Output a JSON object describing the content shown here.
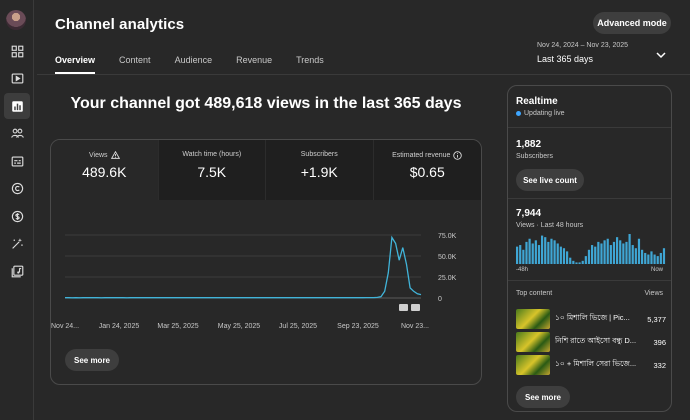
{
  "header": {
    "title": "Channel analytics",
    "advanced_label": "Advanced mode"
  },
  "tabs": [
    {
      "label": "Overview",
      "active": true
    },
    {
      "label": "Content"
    },
    {
      "label": "Audience"
    },
    {
      "label": "Revenue"
    },
    {
      "label": "Trends"
    }
  ],
  "date": {
    "range": "Nov 24, 2024 – Nov 23, 2025",
    "period": "Last 365 days"
  },
  "headline": "Your channel got 489,618 views in the last 365 days",
  "metrics": [
    {
      "label": "Views",
      "value": "489.6K",
      "icon": "warning-icon"
    },
    {
      "label": "Watch time (hours)",
      "value": "7.5K"
    },
    {
      "label": "Subscribers",
      "value": "+1.9K"
    },
    {
      "label": "Estimated revenue",
      "value": "$0.65",
      "icon": "info-icon"
    }
  ],
  "chart_data": {
    "type": "line",
    "series": [
      {
        "values": [
          300,
          320,
          280,
          310,
          290,
          330,
          300,
          310,
          320,
          300,
          290,
          310,
          300,
          320,
          330,
          310,
          300,
          290,
          310,
          320,
          300,
          310,
          320,
          330,
          310,
          300,
          320,
          340,
          330,
          320,
          310,
          300,
          320,
          330,
          340,
          330,
          320,
          310,
          300,
          320,
          350,
          340,
          330,
          320,
          310,
          330,
          340,
          350,
          330,
          320,
          340,
          360,
          350,
          340,
          330,
          350,
          360,
          340,
          330,
          350,
          370,
          360,
          350,
          340,
          360,
          380,
          370,
          360,
          350,
          370,
          390,
          380,
          370,
          360,
          380,
          400,
          390,
          380,
          370,
          400,
          420,
          410,
          400,
          420,
          450,
          500,
          700,
          1500,
          8000,
          30000,
          72000,
          65000,
          45000,
          60000,
          40000,
          12000,
          8000,
          5000,
          4000
        ]
      }
    ],
    "x_tick_labels": [
      "Nov 24...",
      "Jan 24, 2025",
      "Mar 25, 2025",
      "May 25, 2025",
      "Jul 25, 2025",
      "Sep 23, 2025",
      "Nov 23..."
    ],
    "y_tick_labels": [
      "75.0K",
      "50.0K",
      "25.0K",
      "0"
    ],
    "ylim": [
      0,
      75000
    ],
    "line_color": "#41b4d9",
    "grid": true
  },
  "card_see_more": "See more",
  "realtime": {
    "title": "Realtime",
    "status": "Updating live",
    "subscribers_value": "1,882",
    "subscribers_label": "Subscribers",
    "live_count_label": "See live count",
    "views_value": "7,944",
    "views_label": "Views · Last 48 hours",
    "axis_start": "-48h",
    "axis_end": "Now",
    "bars": [
      55,
      60,
      45,
      70,
      80,
      65,
      75,
      60,
      90,
      85,
      70,
      80,
      75,
      65,
      55,
      50,
      40,
      20,
      10,
      5,
      5,
      10,
      25,
      45,
      60,
      55,
      70,
      65,
      75,
      80,
      60,
      70,
      85,
      75,
      65,
      70,
      95,
      60,
      50,
      80,
      45,
      35,
      30,
      40,
      30,
      25,
      35,
      50
    ],
    "top_content_label": "Top content",
    "views_col_label": "Views",
    "top_content": [
      {
        "title": "১০ মিশালি ভিজে | Pic...",
        "views": "5,377"
      },
      {
        "title": "নিশি রাতে আইসো বন্ধু D...",
        "views": "396"
      },
      {
        "title": "১০ + মিশালি সেরা ভিজে...",
        "views": "332"
      }
    ],
    "see_more": "See more"
  },
  "colors": {
    "accent": "#3ea6ff",
    "chart_line": "#41b4d9",
    "bar": "#3fa6d4"
  }
}
